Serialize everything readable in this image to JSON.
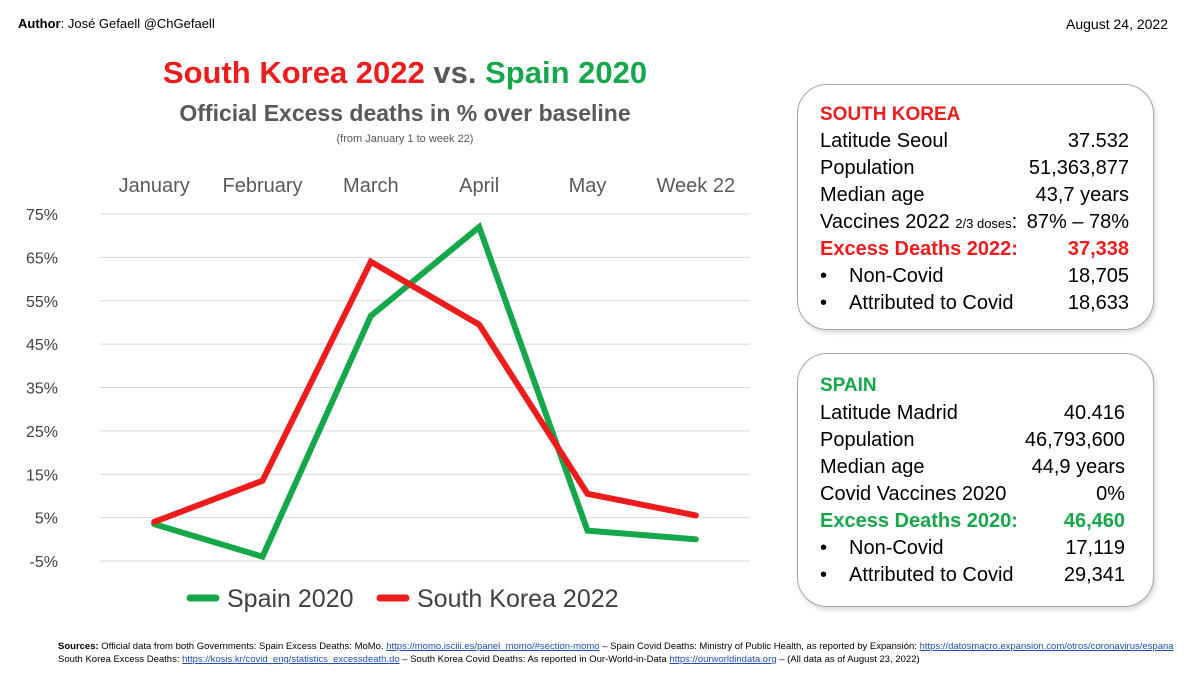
{
  "header": {
    "author_label": "Author",
    "author_text": ": José Gefaell   @ChGefaell",
    "date": "August 24, 2022"
  },
  "title": {
    "part1": "South Korea 2022",
    "part2": " vs. ",
    "part3": "Spain 2020"
  },
  "subtitle": "Official Excess deaths in % over baseline",
  "note": "(from January 1 to week 22)",
  "colors": {
    "south_korea": "#ee1c1c",
    "spain": "#14a84b"
  },
  "chart_data": {
    "type": "line",
    "categories": [
      "January",
      "February",
      "March",
      "April",
      "May",
      "Week 22"
    ],
    "y_tick_labels": [
      "75%",
      "65%",
      "55%",
      "45%",
      "35%",
      "25%",
      "15%",
      "5%",
      "-5%"
    ],
    "ylim": [
      -5,
      75
    ],
    "grid": true,
    "legend_position": "bottom",
    "series": [
      {
        "name": "Spain 2020",
        "color": "#14a84b",
        "values": [
          3.5,
          -4,
          51.5,
          72,
          2,
          0
        ]
      },
      {
        "name": "South Korea 2022",
        "color": "#ee1c1c",
        "values": [
          4,
          13.5,
          64,
          49.5,
          10.5,
          5.5
        ]
      }
    ]
  },
  "south_korea": {
    "heading": "SOUTH KOREA",
    "latitude_label": "Latitude Seoul",
    "latitude_value": "37.532",
    "population_label": "Population",
    "population_value": "51,363,877",
    "median_age_label": "Median age",
    "median_age_value": "43,7 years",
    "vaccines_label": "Vaccines 2022",
    "vaccines_doses": "2/3 doses",
    "vaccines_colon": ":",
    "vaccines_value": "87% – 78%",
    "excess_label": "Excess Deaths 2022:",
    "excess_value": "37,338",
    "bullet": "•",
    "noncovid_label": "Non-Covid",
    "noncovid_value": "18,705",
    "covid_label": "Attributed to Covid",
    "covid_value": "18,633"
  },
  "spain": {
    "heading": "SPAIN",
    "latitude_label": "Latitude Madrid",
    "latitude_value": "40.416",
    "population_label": "Population",
    "population_value": "46,793,600",
    "median_age_label": "Median age",
    "median_age_value": "44,9 years",
    "vaccines_label": "Covid Vaccines 2020",
    "vaccines_value": "0%",
    "excess_label": "Excess Deaths 2020:",
    "excess_value": "46,460",
    "bullet": "•",
    "noncovid_label": "Non-Covid",
    "noncovid_value": "17,119",
    "covid_label": "Attributed to Covid",
    "covid_value": "29,341"
  },
  "sources": {
    "label": "Sources:",
    "line1_text1": " Official data from both Governments: Spain Excess Deaths: MoMo. ",
    "link_momo": "https://momo.isciii.es/panel_momo/#section-momo",
    "line1_text2": " – Spain Covid Deaths: Ministry of Public Health, as reported by Expansión:  ",
    "link_datosmacro": "https://datosmacro.expansion.com/otros/coronavirus/espana",
    "line2_text1": "South Korea Excess Deaths: ",
    "link_kosis": "https://kosis.kr/covid_eng/statistics_excessdeath.do",
    "line2_text2": " – South Korea Covid Deaths: As reported in Our-World-in-Data ",
    "link_owid": "https://ourworldindata.org",
    "line2_text3": "  –  (All data as of August 23, 2022)"
  }
}
